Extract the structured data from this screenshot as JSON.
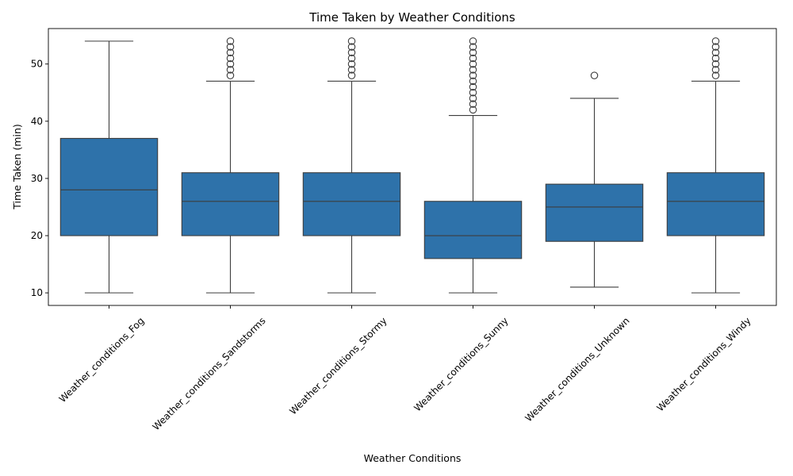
{
  "chart_data": {
    "type": "box",
    "title": "Time Taken by Weather Conditions",
    "xlabel": "Weather Conditions",
    "ylabel": "Time Taken (min)",
    "ylim": [
      7.8,
      56.2
    ],
    "yticks": [
      10,
      20,
      30,
      40,
      50
    ],
    "box_color": "#2e72aa",
    "line_color": "#3d3d3d",
    "categories": [
      "Weather_conditions_Fog",
      "Weather_conditions_Sandstorms",
      "Weather_conditions_Stormy",
      "Weather_conditions_Sunny",
      "Weather_conditions_Unknown",
      "Weather_conditions_Windy"
    ],
    "boxes": [
      {
        "whisker_low": 10,
        "q1": 20,
        "median": 28,
        "q3": 37,
        "whisker_high": 54,
        "outliers": []
      },
      {
        "whisker_low": 10,
        "q1": 20,
        "median": 26,
        "q3": 31,
        "whisker_high": 47,
        "outliers": [
          48,
          49,
          50,
          51,
          52,
          53,
          54
        ]
      },
      {
        "whisker_low": 10,
        "q1": 20,
        "median": 26,
        "q3": 31,
        "whisker_high": 47,
        "outliers": [
          48,
          49,
          50,
          51,
          52,
          53,
          54
        ]
      },
      {
        "whisker_low": 10,
        "q1": 16,
        "median": 20,
        "q3": 26,
        "whisker_high": 41,
        "outliers": [
          42,
          43,
          44,
          45,
          46,
          47,
          48,
          49,
          50,
          51,
          52,
          53,
          54
        ]
      },
      {
        "whisker_low": 11,
        "q1": 19,
        "median": 25,
        "q3": 29,
        "whisker_high": 44,
        "outliers": [
          48
        ]
      },
      {
        "whisker_low": 10,
        "q1": 20,
        "median": 26,
        "q3": 31,
        "whisker_high": 47,
        "outliers": [
          48,
          49,
          50,
          51,
          52,
          53,
          54
        ]
      }
    ]
  }
}
